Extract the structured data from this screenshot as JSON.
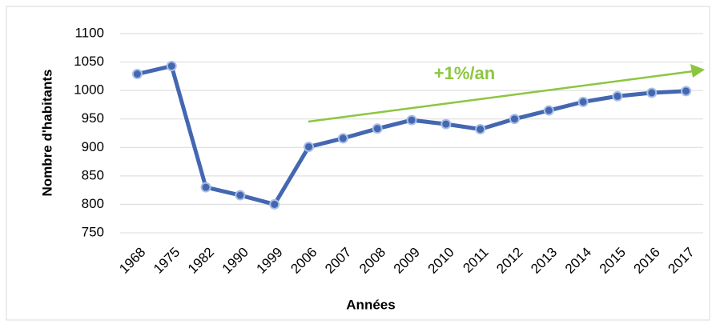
{
  "chart_data": {
    "type": "line",
    "categories": [
      "1968",
      "1975",
      "1982",
      "1990",
      "1999",
      "2006",
      "2007",
      "2008",
      "2009",
      "2010",
      "2011",
      "2012",
      "2013",
      "2014",
      "2015",
      "2016",
      "2017"
    ],
    "values": [
      1029,
      1043,
      830,
      816,
      800,
      901,
      916,
      933,
      948,
      941,
      932,
      950,
      965,
      980,
      990,
      996,
      999
    ],
    "color": "#4467b1",
    "ylim": [
      750,
      1100
    ],
    "yticks": [
      750,
      800,
      850,
      900,
      950,
      1000,
      1050,
      1100
    ],
    "grid": true,
    "x_label": "Années",
    "y_label": "Nombre d'habitants",
    "annotation": "+1%/an",
    "annotation_color": "#8cc63f"
  }
}
